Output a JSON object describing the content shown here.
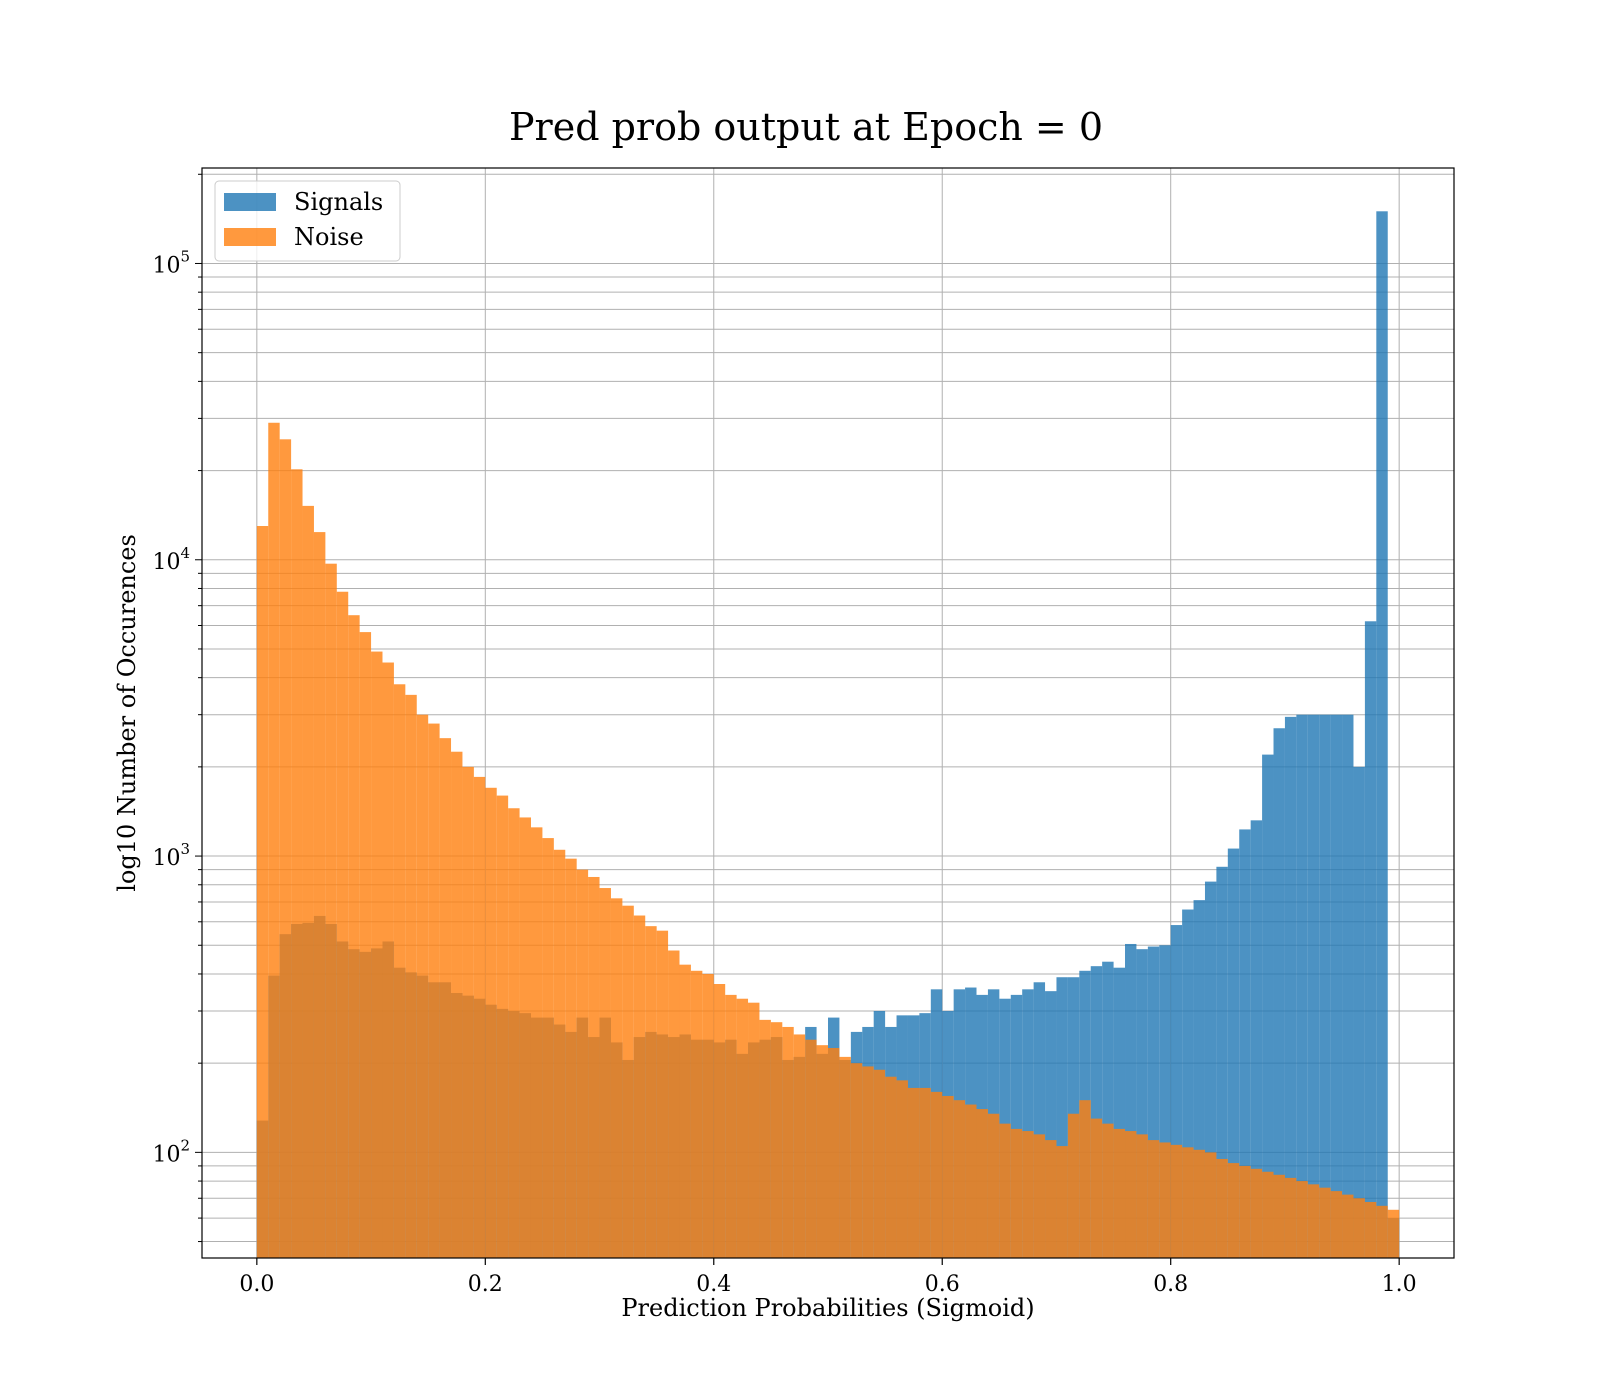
{
  "chart_data": {
    "type": "bar",
    "title": "Pred prob output at Epoch = 0",
    "xlabel": "Prediction Probabilities (Sigmoid)",
    "ylabel": "log10 Number of Occurences",
    "xlim": [
      -0.048,
      1.048
    ],
    "ylim": [
      44,
      210000
    ],
    "y_scale": "log",
    "grid": true,
    "legend": "upper-left",
    "bin_width": 0.01,
    "bin_start": 0.0,
    "x_ticks": [
      {
        "value": 0.0,
        "label": "0.0"
      },
      {
        "value": 0.2,
        "label": "0.2"
      },
      {
        "value": 0.4,
        "label": "0.4"
      },
      {
        "value": 0.6,
        "label": "0.6"
      },
      {
        "value": 0.8,
        "label": "0.8"
      },
      {
        "value": 1.0,
        "label": "1.0"
      }
    ],
    "y_ticks": [
      {
        "value": 100,
        "base": "10",
        "exp": "2"
      },
      {
        "value": 1000,
        "base": "10",
        "exp": "3"
      },
      {
        "value": 10000,
        "base": "10",
        "exp": "4"
      },
      {
        "value": 100000,
        "base": "10",
        "exp": "5"
      }
    ],
    "series": [
      {
        "name": "Signals",
        "color": "#1f77b4",
        "values": [
          128,
          395,
          545,
          590,
          595,
          628,
          590,
          515,
          485,
          475,
          488,
          515,
          420,
          405,
          395,
          375,
          375,
          345,
          338,
          330,
          315,
          305,
          300,
          295,
          285,
          285,
          270,
          255,
          285,
          245,
          285,
          235,
          205,
          245,
          255,
          250,
          245,
          250,
          240,
          240,
          235,
          240,
          215,
          235,
          240,
          245,
          205,
          210,
          265,
          215,
          285,
          205,
          255,
          265,
          300,
          265,
          290,
          290,
          295,
          355,
          300,
          355,
          360,
          340,
          355,
          330,
          340,
          355,
          375,
          350,
          390,
          390,
          410,
          425,
          440,
          420,
          505,
          485,
          495,
          500,
          585,
          660,
          710,
          820,
          920,
          1060,
          1230,
          1320,
          2200,
          2700,
          2950,
          3000,
          3000,
          3000,
          3000,
          3000,
          2000,
          6200,
          150000,
          60
        ]
      },
      {
        "name": "Noise",
        "color": "#ff7f0e",
        "values": [
          13000,
          29000,
          25500,
          20200,
          15200,
          12400,
          9700,
          7800,
          6500,
          5700,
          4900,
          4500,
          3800,
          3500,
          3000,
          2800,
          2500,
          2250,
          2000,
          1850,
          1700,
          1600,
          1450,
          1350,
          1250,
          1150,
          1050,
          980,
          900,
          850,
          780,
          720,
          680,
          630,
          580,
          560,
          480,
          430,
          410,
          400,
          370,
          340,
          330,
          320,
          280,
          275,
          265,
          250,
          240,
          230,
          225,
          210,
          200,
          195,
          190,
          180,
          175,
          165,
          165,
          160,
          155,
          150,
          145,
          140,
          135,
          125,
          120,
          118,
          115,
          110,
          105,
          135,
          150,
          130,
          125,
          120,
          118,
          115,
          110,
          108,
          106,
          104,
          102,
          100,
          95,
          92,
          90,
          88,
          86,
          84,
          82,
          80,
          78,
          76,
          74,
          72,
          70,
          68,
          66,
          64
        ]
      }
    ]
  }
}
